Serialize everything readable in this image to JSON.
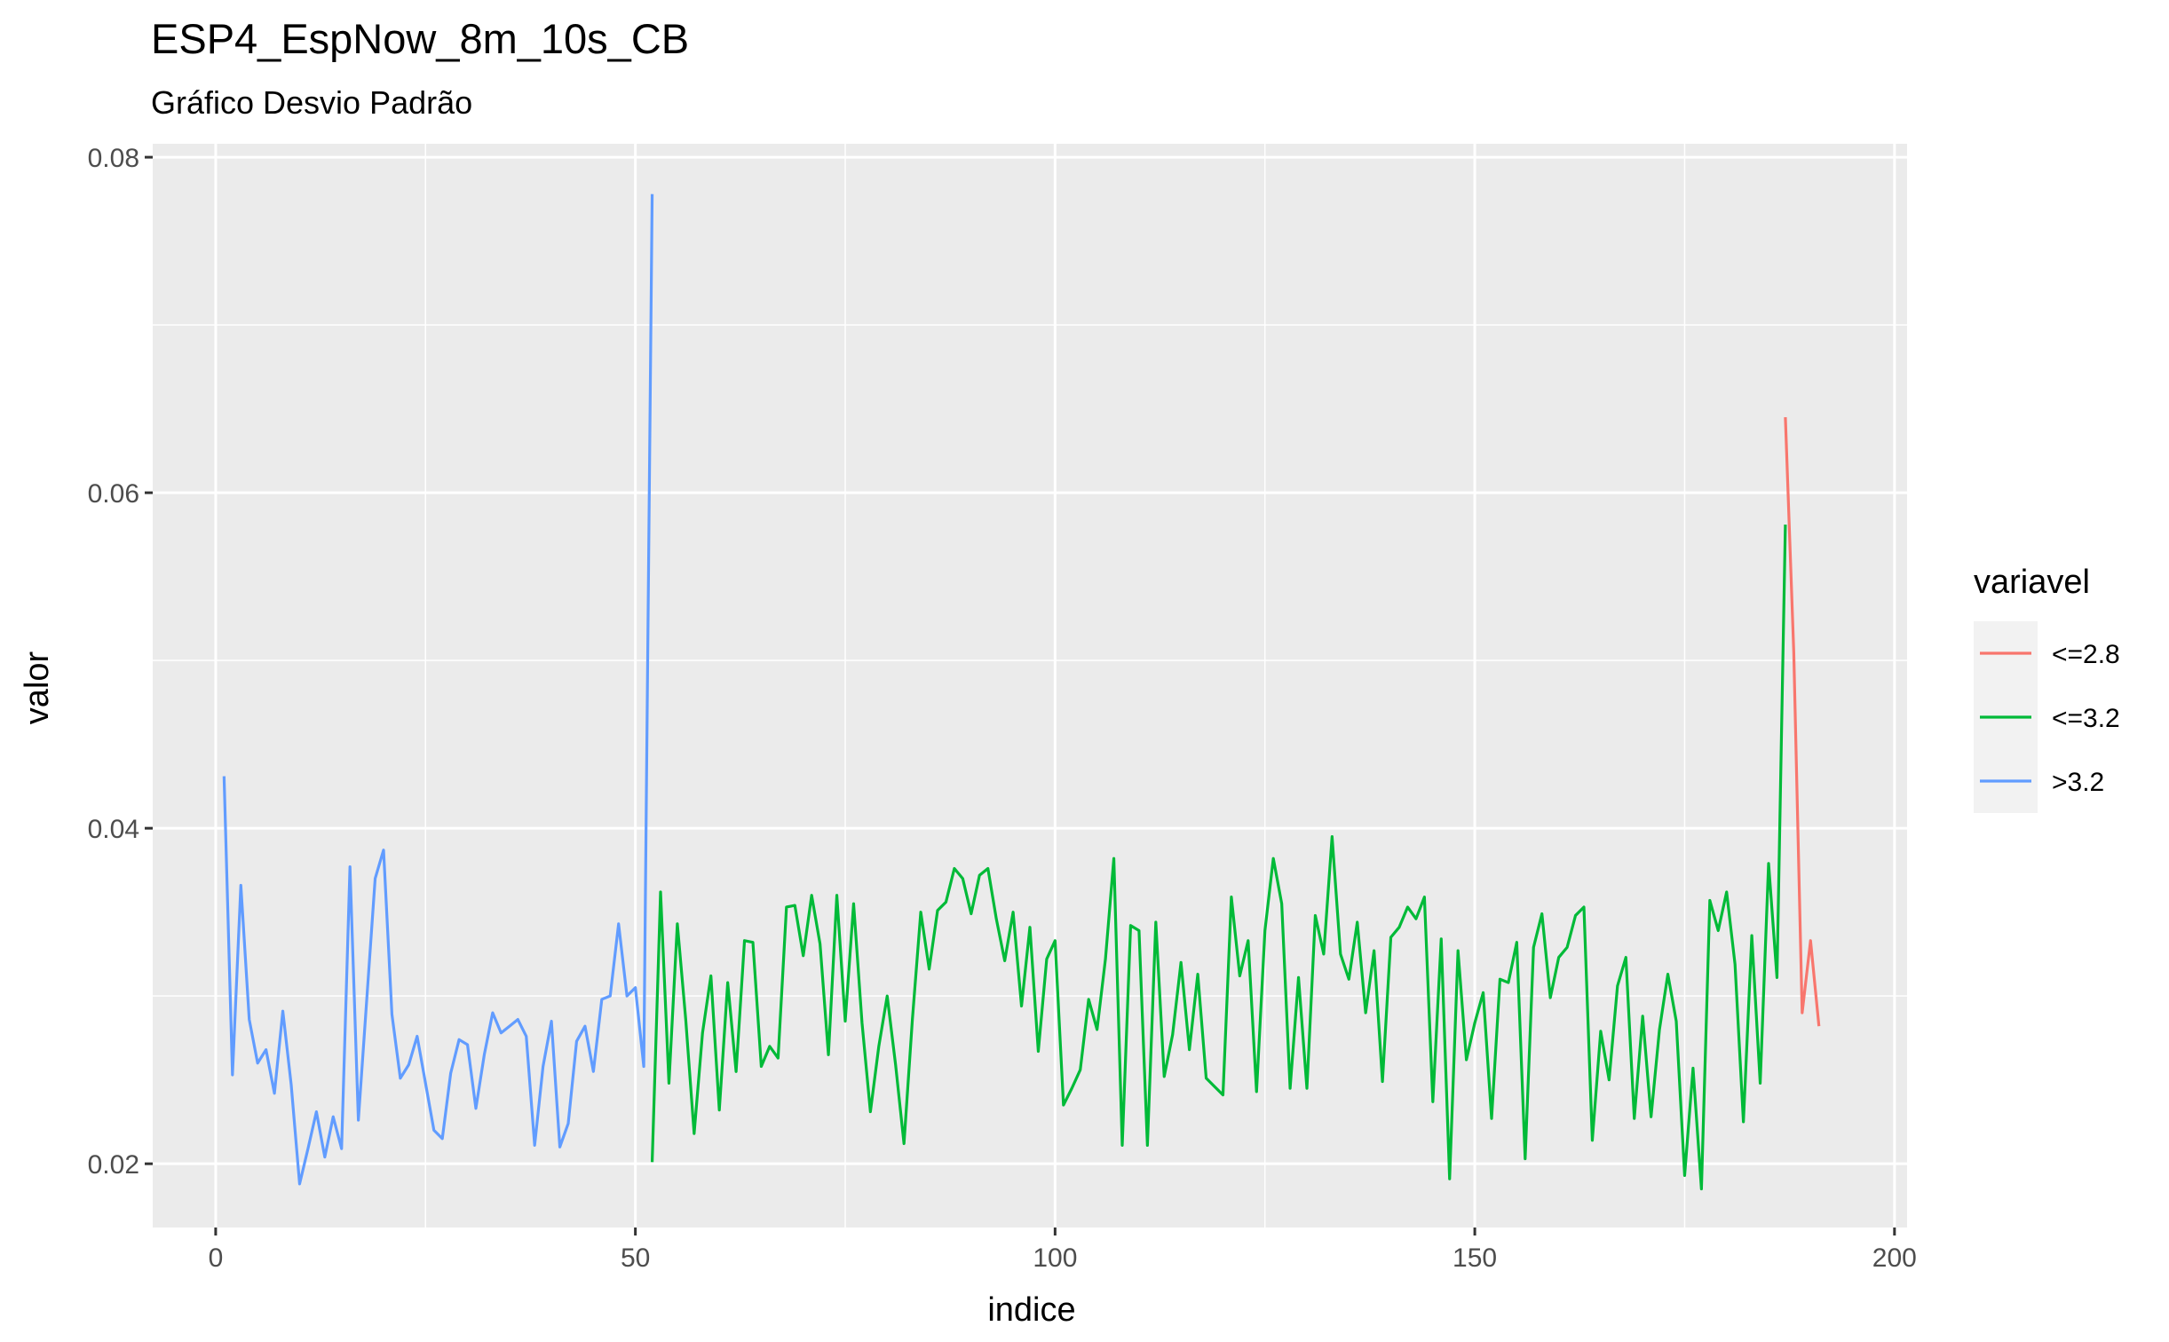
{
  "chart_data": {
    "type": "line",
    "title": "ESP4_EspNow_8m_10s_CB",
    "subtitle": "Gráfico Desvio Padrão",
    "xlabel": "indice",
    "ylabel": "valor",
    "xlim": [
      -7.5,
      201.5
    ],
    "ylim": [
      0.0162,
      0.0808
    ],
    "x_ticks": [
      0,
      50,
      100,
      150,
      200
    ],
    "x_tick_labels": [
      "0",
      "50",
      "100",
      "150",
      "200"
    ],
    "y_ticks": [
      0.02,
      0.04,
      0.06,
      0.08
    ],
    "y_tick_labels": [
      "0.02",
      "0.04",
      "0.06",
      "0.08"
    ],
    "grid": true,
    "legend": {
      "title": "variavel",
      "position": "right"
    },
    "colors": {
      "panel": "#EBEBEB",
      "grid": "#FFFFFF",
      "red": "#F8766D",
      "green": "#00BA38",
      "blue": "#619CFF"
    },
    "series": [
      {
        "name": "<=2.8",
        "color": "#F8766D",
        "x": [
          187,
          188,
          189,
          190,
          191
        ],
        "y": [
          0.0645,
          0.0505,
          0.029,
          0.0333,
          0.0282
        ]
      },
      {
        "name": "<=3.2",
        "color": "#00BA38",
        "x": [
          52,
          53,
          54,
          55,
          56,
          57,
          58,
          59,
          60,
          61,
          62,
          63,
          64,
          65,
          66,
          67,
          68,
          69,
          70,
          71,
          72,
          73,
          74,
          75,
          76,
          77,
          78,
          79,
          80,
          81,
          82,
          83,
          84,
          85,
          86,
          87,
          88,
          89,
          90,
          91,
          92,
          93,
          94,
          95,
          96,
          97,
          98,
          99,
          100,
          101,
          102,
          103,
          104,
          105,
          106,
          107,
          108,
          109,
          110,
          111,
          112,
          113,
          114,
          115,
          116,
          117,
          118,
          119,
          120,
          121,
          122,
          123,
          124,
          125,
          126,
          127,
          128,
          129,
          130,
          131,
          132,
          133,
          134,
          135,
          136,
          137,
          138,
          139,
          140,
          141,
          142,
          143,
          144,
          145,
          146,
          147,
          148,
          149,
          150,
          151,
          152,
          153,
          154,
          155,
          156,
          157,
          158,
          159,
          160,
          161,
          162,
          163,
          164,
          165,
          166,
          167,
          168,
          169,
          170,
          171,
          172,
          173,
          174,
          175,
          176,
          177,
          178,
          179,
          180,
          181,
          182,
          183,
          184,
          185,
          186,
          187
        ],
        "y": [
          0.0201,
          0.0362,
          0.0248,
          0.0343,
          0.0286,
          0.0218,
          0.0278,
          0.0312,
          0.0232,
          0.0308,
          0.0255,
          0.0333,
          0.0332,
          0.0258,
          0.027,
          0.0263,
          0.0353,
          0.0354,
          0.0324,
          0.036,
          0.0331,
          0.0265,
          0.036,
          0.0285,
          0.0355,
          0.0284,
          0.0231,
          0.027,
          0.03,
          0.0259,
          0.0212,
          0.0286,
          0.035,
          0.0316,
          0.0351,
          0.0356,
          0.0376,
          0.037,
          0.0349,
          0.0372,
          0.0376,
          0.0346,
          0.0321,
          0.035,
          0.0294,
          0.0341,
          0.0267,
          0.0322,
          0.0333,
          0.0235,
          0.0245,
          0.0256,
          0.0298,
          0.028,
          0.0322,
          0.0382,
          0.0211,
          0.0342,
          0.0339,
          0.0211,
          0.0344,
          0.0252,
          0.0277,
          0.032,
          0.0268,
          0.0313,
          0.0251,
          0.0246,
          0.0241,
          0.0359,
          0.0312,
          0.0333,
          0.0243,
          0.0339,
          0.0382,
          0.0355,
          0.0245,
          0.0311,
          0.0245,
          0.0348,
          0.0325,
          0.0395,
          0.0325,
          0.031,
          0.0344,
          0.029,
          0.0327,
          0.0249,
          0.0335,
          0.0341,
          0.0353,
          0.0346,
          0.0359,
          0.0237,
          0.0334,
          0.0191,
          0.0327,
          0.0262,
          0.0284,
          0.0302,
          0.0227,
          0.031,
          0.0308,
          0.0332,
          0.0203,
          0.0329,
          0.0349,
          0.0299,
          0.0323,
          0.0329,
          0.0348,
          0.0353,
          0.0214,
          0.0279,
          0.025,
          0.0306,
          0.0323,
          0.0227,
          0.0288,
          0.0228,
          0.028,
          0.0313,
          0.0285,
          0.0193,
          0.0257,
          0.0185,
          0.0357,
          0.0339,
          0.0362,
          0.0319,
          0.0225,
          0.0336,
          0.0248,
          0.0379,
          0.0311,
          0.0581
        ]
      },
      {
        "name": ">3.2",
        "color": "#619CFF",
        "x": [
          1,
          2,
          3,
          4,
          5,
          6,
          7,
          8,
          9,
          10,
          11,
          12,
          13,
          14,
          15,
          16,
          17,
          18,
          19,
          20,
          21,
          22,
          23,
          24,
          25,
          26,
          27,
          28,
          29,
          30,
          31,
          32,
          33,
          34,
          35,
          36,
          37,
          38,
          39,
          40,
          41,
          42,
          43,
          44,
          45,
          46,
          47,
          48,
          49,
          50,
          51,
          52
        ],
        "y": [
          0.0431,
          0.0253,
          0.0366,
          0.0286,
          0.026,
          0.0268,
          0.0242,
          0.0291,
          0.0247,
          0.0188,
          0.0209,
          0.0231,
          0.0204,
          0.0228,
          0.0209,
          0.0377,
          0.0226,
          0.0298,
          0.037,
          0.0387,
          0.0289,
          0.0251,
          0.0259,
          0.0276,
          0.0248,
          0.022,
          0.0215,
          0.0254,
          0.0274,
          0.0271,
          0.0233,
          0.0265,
          0.029,
          0.0278,
          0.0282,
          0.0286,
          0.0276,
          0.0211,
          0.0258,
          0.0285,
          0.021,
          0.0224,
          0.0273,
          0.0282,
          0.0255,
          0.0298,
          0.03,
          0.0343,
          0.03,
          0.0305,
          0.0258,
          0.0778
        ]
      }
    ]
  }
}
